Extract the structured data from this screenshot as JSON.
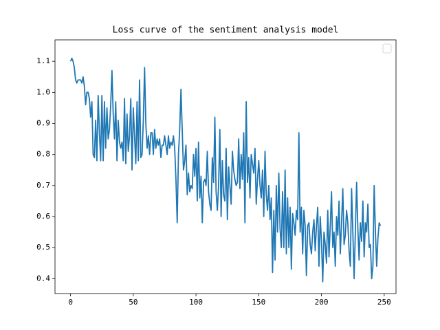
{
  "chart_data": {
    "type": "line",
    "title": "Loss curve of the sentiment analysis model",
    "x": [
      0,
      1,
      2,
      3,
      4,
      5,
      6,
      7,
      8,
      9,
      10,
      11,
      12,
      13,
      14,
      15,
      16,
      17,
      18,
      19,
      20,
      21,
      22,
      23,
      24,
      25,
      26,
      27,
      28,
      29,
      30,
      31,
      32,
      33,
      34,
      35,
      36,
      37,
      38,
      39,
      40,
      41,
      42,
      43,
      44,
      45,
      46,
      47,
      48,
      49,
      50,
      51,
      52,
      53,
      54,
      55,
      56,
      57,
      58,
      59,
      60,
      61,
      62,
      63,
      64,
      65,
      66,
      67,
      68,
      69,
      70,
      71,
      72,
      73,
      74,
      75,
      76,
      77,
      78,
      79,
      80,
      81,
      82,
      83,
      84,
      85,
      86,
      87,
      88,
      89,
      90,
      91,
      92,
      93,
      94,
      95,
      96,
      97,
      98,
      99,
      100,
      101,
      102,
      103,
      104,
      105,
      106,
      107,
      108,
      109,
      110,
      111,
      112,
      113,
      114,
      115,
      116,
      117,
      118,
      119,
      120,
      121,
      122,
      123,
      124,
      125,
      126,
      127,
      128,
      129,
      130,
      131,
      132,
      133,
      134,
      135,
      136,
      137,
      138,
      139,
      140,
      141,
      142,
      143,
      144,
      145,
      146,
      147,
      148,
      149,
      150,
      151,
      152,
      153,
      154,
      155,
      156,
      157,
      158,
      159,
      160,
      161,
      162,
      163,
      164,
      165,
      166,
      167,
      168,
      169,
      170,
      171,
      172,
      173,
      174,
      175,
      176,
      177,
      178,
      179,
      180,
      181,
      182,
      183,
      184,
      185,
      186,
      187,
      188,
      189,
      190,
      191,
      192,
      193,
      194,
      195,
      196,
      197,
      198,
      199,
      200,
      201,
      202,
      203,
      204,
      205,
      206,
      207,
      208,
      209,
      210,
      211,
      212,
      213,
      214,
      215,
      216,
      217,
      218,
      219,
      220,
      221,
      222,
      223,
      224,
      225,
      226,
      227,
      228,
      229,
      230,
      231,
      232,
      233,
      234,
      235,
      236,
      237,
      238,
      239,
      240,
      241,
      242,
      243,
      244,
      245,
      246,
      247
    ],
    "series": [
      {
        "color": "#1f77b4",
        "values": [
          1.1,
          1.11,
          1.1,
          1.08,
          1.04,
          1.03,
          1.04,
          1.04,
          1.04,
          1.03,
          1.05,
          1.02,
          0.96,
          1.0,
          1.0,
          0.98,
          0.92,
          0.97,
          0.8,
          0.79,
          0.91,
          0.78,
          0.99,
          0.87,
          0.78,
          0.99,
          0.78,
          0.97,
          0.82,
          0.95,
          0.85,
          0.88,
          0.96,
          1.07,
          0.93,
          0.85,
          0.97,
          0.78,
          0.91,
          0.84,
          0.82,
          0.84,
          0.78,
          0.98,
          0.77,
          0.93,
          0.81,
          0.86,
          0.98,
          0.75,
          0.95,
          0.86,
          0.77,
          0.97,
          0.78,
          1.04,
          0.79,
          0.8,
          0.91,
          1.08,
          0.9,
          0.82,
          0.86,
          0.8,
          0.87,
          0.87,
          0.8,
          0.88,
          0.82,
          0.85,
          0.83,
          0.85,
          0.79,
          0.83,
          0.83,
          0.86,
          0.83,
          0.8,
          0.86,
          0.82,
          0.84,
          0.83,
          0.86,
          0.82,
          0.72,
          0.58,
          0.8,
          0.88,
          1.01,
          0.88,
          0.75,
          0.78,
          0.83,
          0.67,
          0.74,
          0.68,
          0.7,
          0.69,
          0.8,
          0.73,
          0.82,
          0.65,
          0.84,
          0.66,
          0.73,
          0.58,
          0.71,
          0.72,
          0.7,
          0.81,
          0.68,
          0.64,
          0.62,
          0.79,
          0.71,
          0.92,
          0.68,
          0.62,
          0.7,
          0.88,
          0.6,
          0.78,
          0.67,
          0.65,
          0.82,
          0.59,
          0.76,
          0.7,
          0.64,
          0.81,
          0.75,
          0.72,
          0.7,
          0.71,
          0.85,
          0.69,
          0.8,
          0.72,
          0.87,
          0.58,
          0.97,
          0.71,
          0.79,
          0.66,
          0.8,
          0.77,
          0.74,
          0.82,
          0.64,
          0.72,
          0.78,
          0.7,
          0.66,
          0.75,
          0.6,
          0.81,
          0.67,
          0.62,
          0.7,
          0.59,
          0.66,
          0.42,
          0.62,
          0.46,
          0.7,
          0.55,
          0.74,
          0.56,
          0.5,
          0.68,
          0.5,
          0.75,
          0.48,
          0.66,
          0.5,
          0.63,
          0.43,
          0.61,
          0.58,
          0.54,
          0.62,
          0.59,
          0.87,
          0.55,
          0.63,
          0.48,
          0.62,
          0.57,
          0.41,
          0.57,
          0.58,
          0.51,
          0.48,
          0.55,
          0.59,
          0.49,
          0.57,
          0.63,
          0.44,
          0.6,
          0.52,
          0.39,
          0.55,
          0.51,
          0.45,
          0.62,
          0.47,
          0.57,
          0.68,
          0.5,
          0.55,
          0.44,
          0.6,
          0.54,
          0.65,
          0.48,
          0.58,
          0.69,
          0.51,
          0.54,
          0.62,
          0.58,
          0.49,
          0.44,
          0.69,
          0.55,
          0.4,
          0.55,
          0.71,
          0.56,
          0.46,
          0.58,
          0.52,
          0.65,
          0.47,
          0.58,
          0.55,
          0.64,
          0.5,
          0.51,
          0.4,
          0.44,
          0.7,
          0.55,
          0.44,
          0.53,
          0.58,
          0.57
        ]
      }
    ],
    "xlim": [
      -12.4,
      259.4
    ],
    "xticks": [
      0,
      50,
      100,
      150,
      200,
      250
    ],
    "ylim": [
      0.352,
      1.169
    ],
    "yticks": [
      0.4,
      0.5,
      0.6,
      0.7,
      0.8,
      0.9,
      {
        "value": 1,
        "label": "1.0"
      },
      1.1
    ],
    "grid": false,
    "legend": "upper right"
  }
}
